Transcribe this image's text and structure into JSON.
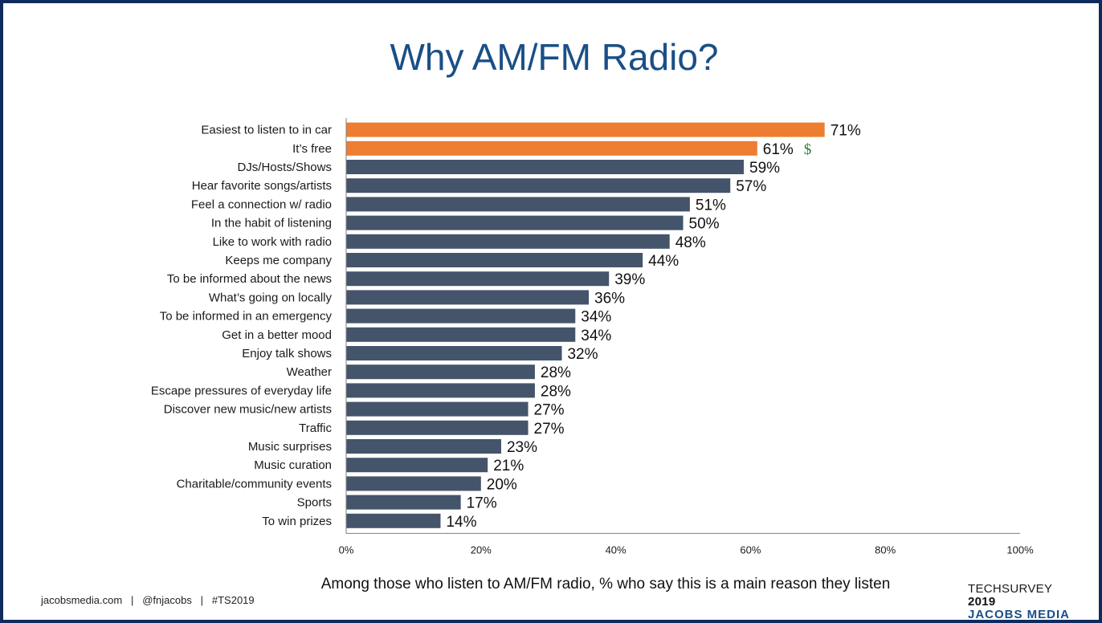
{
  "title": "Why AM/FM Radio?",
  "chart_data": {
    "type": "bar",
    "orientation": "horizontal",
    "categories": [
      "Easiest to listen to in car",
      "It’s free",
      "DJs/Hosts/Shows",
      "Hear favorite songs/artists",
      "Feel a connection w/ radio",
      "In the habit of listening",
      "Like to work with radio",
      "Keeps me company",
      "To be informed about the news",
      "What’s going on locally",
      "To be informed in an emergency",
      "Get in a better mood",
      "Enjoy talk shows",
      "Weather",
      "Escape pressures of everyday life",
      "Discover new music/new artists",
      "Traffic",
      "Music surprises",
      "Music curation",
      "Charitable/community events",
      "Sports",
      "To win prizes"
    ],
    "values": [
      71,
      61,
      59,
      57,
      51,
      50,
      48,
      44,
      39,
      36,
      34,
      34,
      32,
      28,
      28,
      27,
      27,
      23,
      21,
      20,
      17,
      14
    ],
    "value_labels": [
      "71%",
      "61%",
      "59%",
      "57%",
      "51%",
      "50%",
      "48%",
      "44%",
      "39%",
      "36%",
      "34%",
      "34%",
      "32%",
      "28%",
      "28%",
      "27%",
      "27%",
      "23%",
      "21%",
      "20%",
      "17%",
      "14%"
    ],
    "highlighted": [
      0,
      1
    ],
    "annotations": [
      {
        "index": 1,
        "text": "$",
        "color": "#2e7d32"
      }
    ],
    "xlim": [
      0,
      100
    ],
    "xticks": [
      0,
      20,
      40,
      60,
      80,
      100
    ],
    "xtick_labels": [
      "0%",
      "20%",
      "40%",
      "60%",
      "80%",
      "100%"
    ],
    "xlabel": "Among those who listen to AM/FM radio, % who say this is a main reason they listen",
    "grid": false,
    "colors": {
      "highlight": "#ed7d31",
      "default": "#44546a"
    }
  },
  "footer": "jacobsmedia.com   |   @fnjacobs   |   #TS2019",
  "logo": {
    "line1": "TECHSURVEY",
    "year": "2019",
    "line2": "JACOBS MEDIA"
  }
}
